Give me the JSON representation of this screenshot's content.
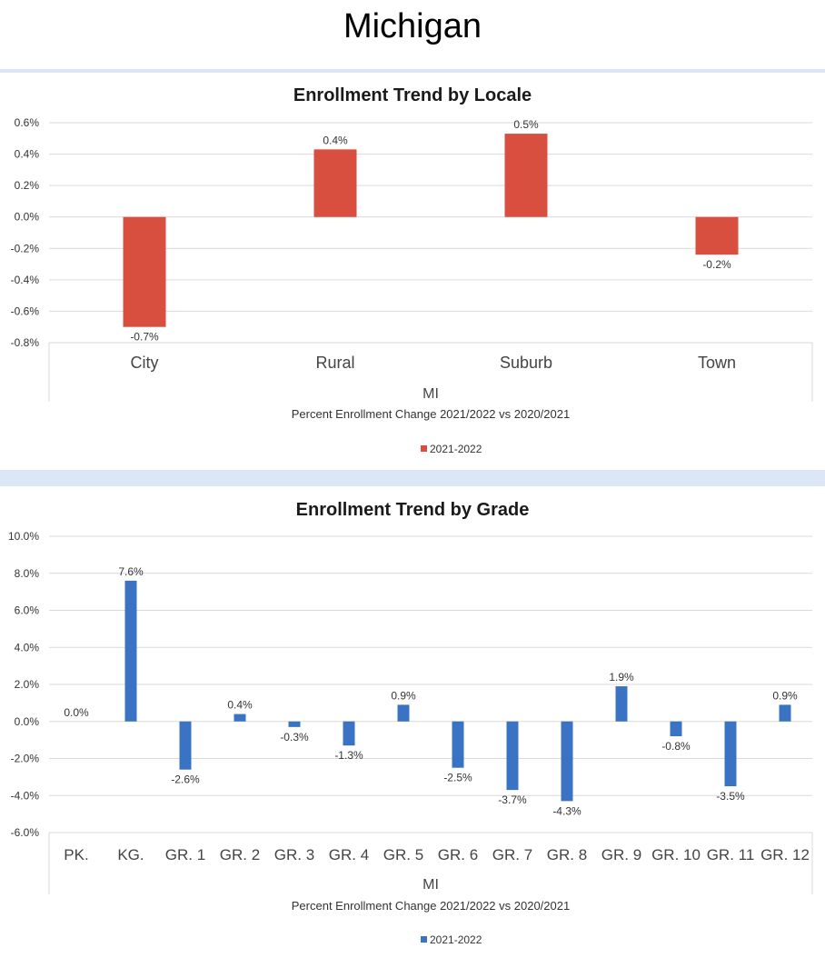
{
  "page": {
    "title": "Michigan"
  },
  "chart_data": [
    {
      "type": "bar",
      "title": "Enrollment Trend by Locale",
      "categories": [
        "City",
        "Rural",
        "Suburb",
        "Town"
      ],
      "series": [
        {
          "name": "2021-2022",
          "color": "#d84f3f",
          "values": [
            -0.7,
            0.43,
            0.53,
            -0.24
          ]
        }
      ],
      "data_labels": [
        "-0.7%",
        "0.4%",
        "0.5%",
        "-0.2%"
      ],
      "ylim": [
        -0.8,
        0.6
      ],
      "yticks": [
        0.6,
        0.4,
        0.2,
        0.0,
        -0.2,
        -0.4,
        -0.6,
        -0.8
      ],
      "ytick_labels": [
        "0.6%",
        "0.4%",
        "0.2%",
        "0.0%",
        "-0.2%",
        "-0.4%",
        "-0.6%",
        "-0.8%"
      ],
      "xlabel": "MI",
      "subtitle": "Percent Enrollment Change 2021/2022 vs 2020/2021",
      "legend": "bottom-center",
      "grid": true
    },
    {
      "type": "bar",
      "title": "Enrollment Trend by Grade",
      "categories": [
        "PK.",
        "KG.",
        "GR. 1",
        "GR. 2",
        "GR. 3",
        "GR. 4",
        "GR. 5",
        "GR. 6",
        "GR. 7",
        "GR. 8",
        "GR. 9",
        "GR. 10",
        "GR. 11",
        "GR. 12"
      ],
      "series": [
        {
          "name": "2021-2022",
          "color": "#3a73c4",
          "values": [
            0.0,
            7.6,
            -2.6,
            0.4,
            -0.3,
            -1.3,
            0.9,
            -2.5,
            -3.7,
            -4.3,
            1.9,
            -0.8,
            -3.5,
            0.9
          ]
        }
      ],
      "data_labels": [
        "0.0%",
        "7.6%",
        "-2.6%",
        "0.4%",
        "-0.3%",
        "-1.3%",
        "0.9%",
        "-2.5%",
        "-3.7%",
        "-4.3%",
        "1.9%",
        "-0.8%",
        "-3.5%",
        "0.9%"
      ],
      "ylim": [
        -6.0,
        10.0
      ],
      "yticks": [
        10,
        8,
        6,
        4,
        2,
        0,
        -2,
        -4,
        -6
      ],
      "ytick_labels": [
        "10.0%",
        "8.0%",
        "6.0%",
        "4.0%",
        "2.0%",
        "0.0%",
        "-2.0%",
        "-4.0%",
        "-6.0%"
      ],
      "xlabel": "MI",
      "subtitle": "Percent Enrollment Change 2021/2022 vs 2020/2021",
      "legend": "bottom-center",
      "grid": true
    }
  ]
}
